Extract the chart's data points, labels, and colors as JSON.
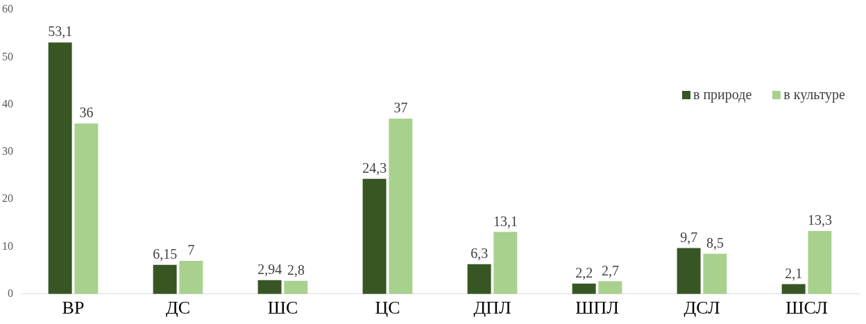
{
  "chart_data": {
    "type": "bar",
    "categories": [
      "ВР",
      "ДС",
      "ШС",
      "ЦС",
      "ДПЛ",
      "ШПЛ",
      "ДСЛ",
      "ШСЛ"
    ],
    "series": [
      {
        "name": "в природе",
        "color": "#375623",
        "values": [
          53.1,
          6.15,
          2.94,
          24.3,
          6.3,
          2.2,
          9.7,
          2.1
        ],
        "value_labels": [
          "53,1",
          "6,15",
          "2,94",
          "24,3",
          "6,3",
          "2,2",
          "9,7",
          "2,1"
        ]
      },
      {
        "name": "в культуре",
        "color": "#a9d18e",
        "values": [
          36,
          7,
          2.8,
          37,
          13.1,
          2.7,
          8.5,
          13.3
        ],
        "value_labels": [
          "36",
          "7",
          "2,8",
          "37",
          "13,1",
          "2,7",
          "8,5",
          "13,3"
        ]
      }
    ],
    "ylim": [
      0,
      60
    ],
    "yticks": [
      0,
      10,
      20,
      30,
      40,
      50,
      60
    ],
    "grid": false,
    "legend": "top right"
  }
}
